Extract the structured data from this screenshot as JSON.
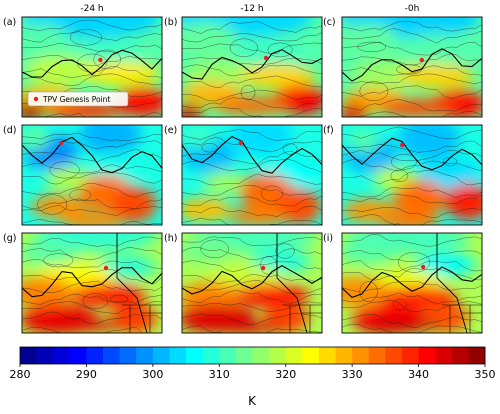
{
  "chart_data": {
    "type": "heatmap",
    "column_titles": [
      "-24 h",
      "-12 h",
      "-0h"
    ],
    "panel_labels": [
      "(a)",
      "(b)",
      "(c)",
      "(d)",
      "(e)",
      "(f)",
      "(g)",
      "(h)",
      "(i)"
    ],
    "legend": {
      "label": "TPV Genesis Point",
      "marker_color": "#e8202a"
    },
    "colorbar": {
      "unit": "K",
      "vmin": 280,
      "vmax": 350,
      "ticks": [
        280,
        290,
        300,
        310,
        320,
        330,
        340,
        350
      ],
      "colormap": "jet"
    }
  }
}
